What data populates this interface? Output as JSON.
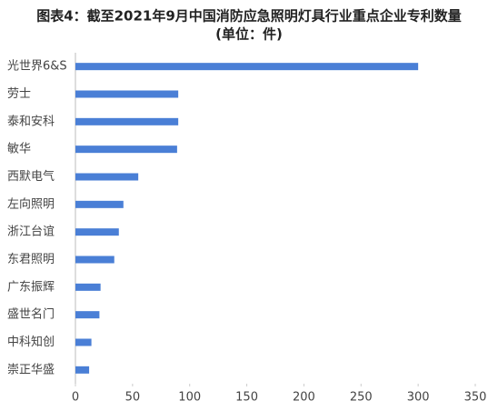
{
  "chart_data": {
    "type": "barh",
    "title": "图表4：截至2021年9月中国消防应急照明灯具行业重点企业专利数量",
    "subtitle": "(单位：件)",
    "categories": [
      "光世界6&S",
      "劳士",
      "泰和安科",
      "敏华",
      "西默电气",
      "左向照明",
      "浙江台谊",
      "东君照明",
      "广东振辉",
      "盛世名门",
      "中科知创",
      "崇正华盛"
    ],
    "values": [
      300,
      90,
      90,
      89,
      55,
      42,
      38,
      34,
      22,
      21,
      14,
      12
    ],
    "color": "#4a7fd6",
    "xlim": [
      0,
      350
    ],
    "xticks": [
      0,
      50,
      100,
      150,
      200,
      250,
      300,
      350
    ],
    "grid": false
  }
}
